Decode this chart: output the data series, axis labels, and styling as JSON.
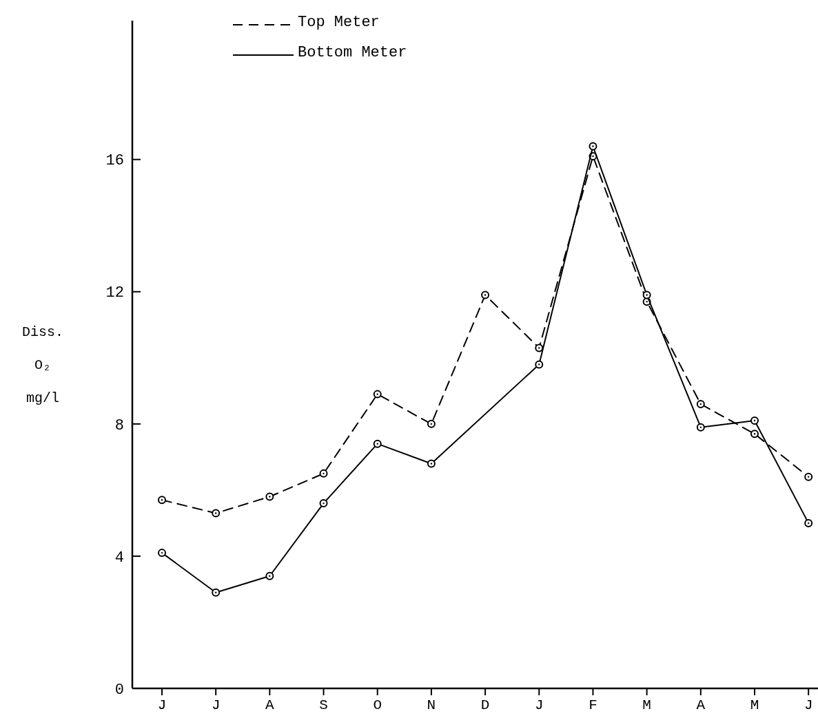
{
  "chart_data": {
    "type": "line",
    "ylabel": "Diss. O₂ mg/l",
    "categories": [
      "J",
      "J",
      "A",
      "S",
      "O",
      "N",
      "D",
      "J",
      "F",
      "M",
      "A",
      "M",
      "J"
    ],
    "ylim": [
      0,
      20.2
    ],
    "yticks": [
      0,
      4,
      8,
      12,
      16
    ],
    "grid": false,
    "legend": "top",
    "marker": "circle",
    "series": [
      {
        "name": "Top Meter",
        "color": "#000000",
        "line_style": "dashed",
        "values": [
          5.7,
          5.3,
          5.8,
          6.5,
          8.9,
          8.0,
          11.9,
          10.3,
          16.1,
          11.7,
          8.6,
          7.7,
          6.4
        ]
      },
      {
        "name": "Bottom Meter",
        "color": "#000000",
        "line_style": "solid",
        "values": [
          4.1,
          2.9,
          3.4,
          5.6,
          7.4,
          6.8,
          null,
          9.8,
          16.4,
          11.9,
          7.9,
          8.1,
          5.0
        ]
      }
    ]
  }
}
